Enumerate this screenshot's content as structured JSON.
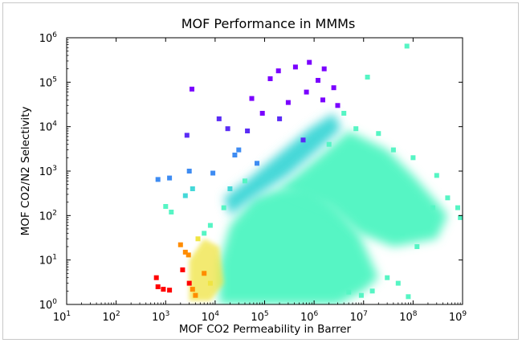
{
  "chart_data": {
    "type": "scatter",
    "title": "MOF Performance in MMMs",
    "xlabel": "MOF CO2 Permeability in Barrer",
    "ylabel": "MOF CO2/N2 Selectivity",
    "x_scale": "log",
    "y_scale": "log",
    "xlim": [
      10,
      1000000000
    ],
    "ylim": [
      1,
      1000000
    ],
    "grid": false,
    "legend": "none",
    "x_ticks": [
      {
        "base": "10",
        "exp": "1"
      },
      {
        "base": "10",
        "exp": "2"
      },
      {
        "base": "10",
        "exp": "3"
      },
      {
        "base": "10",
        "exp": "4"
      },
      {
        "base": "10",
        "exp": "5"
      },
      {
        "base": "10",
        "exp": "6"
      },
      {
        "base": "10",
        "exp": "7"
      },
      {
        "base": "10",
        "exp": "8"
      },
      {
        "base": "10",
        "exp": "9"
      }
    ],
    "y_ticks": [
      {
        "base": "10",
        "exp": "0"
      },
      {
        "base": "10",
        "exp": "1"
      },
      {
        "base": "10",
        "exp": "2"
      },
      {
        "base": "10",
        "exp": "3"
      },
      {
        "base": "10",
        "exp": "4"
      },
      {
        "base": "10",
        "exp": "5"
      },
      {
        "base": "10",
        "exp": "6"
      }
    ],
    "colormap": [
      "#ff0000",
      "#ff8c00",
      "#f0e442",
      "#56f5c4",
      "#45d8d8",
      "#3e8cf2",
      "#5a2cf5",
      "#7a00ff"
    ],
    "dense_region_color": "#56f5c4",
    "series": [
      {
        "points": [
          [
            650,
            4
          ],
          [
            700,
            2.5
          ],
          [
            900,
            2.2
          ],
          [
            1200,
            2.1
          ],
          [
            700,
            650
          ],
          [
            1200,
            700
          ],
          [
            1000,
            160
          ],
          [
            1300,
            120
          ],
          [
            3400,
            70000
          ],
          [
            2700,
            6400
          ],
          [
            3000,
            1000
          ],
          [
            2500,
            280
          ],
          [
            3500,
            400
          ],
          [
            2000,
            22
          ],
          [
            2500,
            15
          ],
          [
            2200,
            6
          ],
          [
            3000,
            3
          ],
          [
            3500,
            2.2
          ],
          [
            4000,
            1.6
          ],
          [
            2900,
            13
          ],
          [
            4500,
            30
          ],
          [
            6000,
            5
          ],
          [
            8000,
            3
          ],
          [
            12000,
            15000
          ],
          [
            18000,
            9000
          ],
          [
            25000,
            2300
          ],
          [
            55000,
            43000
          ],
          [
            130000,
            120000
          ],
          [
            190000,
            180000
          ],
          [
            420000,
            220000
          ],
          [
            800000,
            280000
          ],
          [
            1600000,
            200000
          ],
          [
            1200000,
            110000
          ],
          [
            2500000,
            75000
          ],
          [
            12000000,
            130000
          ],
          [
            75000000,
            650000
          ],
          [
            4000000,
            20000
          ],
          [
            7000000,
            9000
          ],
          [
            20000000,
            7000
          ],
          [
            40000000,
            3000
          ],
          [
            100000000,
            2000
          ],
          [
            300000000,
            800
          ],
          [
            500000000,
            250
          ],
          [
            800000000,
            150
          ],
          [
            60000000,
            40
          ],
          [
            120000000,
            20
          ],
          [
            200000000,
            60
          ],
          [
            250000000,
            150
          ],
          [
            900000000,
            90
          ],
          [
            30000000,
            4
          ],
          [
            50000000,
            3
          ],
          [
            15000000,
            2
          ],
          [
            80000000,
            1.5
          ],
          [
            9000000,
            1.6
          ],
          [
            5000000,
            1.9
          ],
          [
            40000,
            600
          ],
          [
            70000,
            1500
          ],
          [
            20000,
            400
          ],
          [
            15000,
            150
          ],
          [
            8000,
            60
          ],
          [
            6000,
            40
          ],
          [
            30000,
            3000
          ],
          [
            9000,
            900
          ],
          [
            45000,
            8000
          ],
          [
            90000,
            20000
          ],
          [
            300000,
            35000
          ],
          [
            200000,
            15000
          ],
          [
            700000,
            60000
          ],
          [
            1500000,
            40000
          ],
          [
            3000000,
            30000
          ],
          [
            600000,
            5000
          ],
          [
            2000000,
            4000
          ],
          [
            10000000,
            2500
          ]
        ]
      }
    ]
  }
}
